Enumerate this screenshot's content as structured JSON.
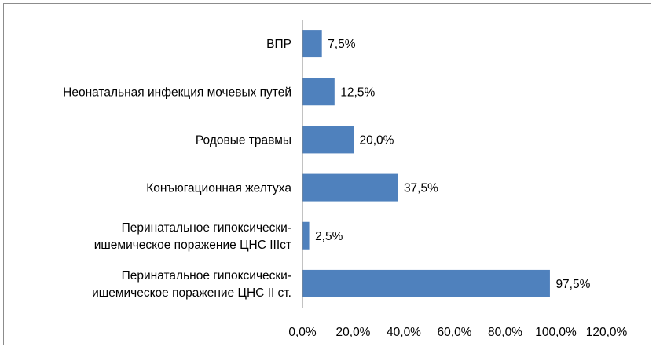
{
  "chart_data": {
    "type": "bar",
    "orientation": "horizontal",
    "categories": [
      [
        "ВПР"
      ],
      [
        "Неонатальная инфекция мочевых путей"
      ],
      [
        "Родовые травмы"
      ],
      [
        "Конъюгационная желтуха"
      ],
      [
        "Перинатальное гипоксически-",
        "ишемическое поражение ЦНС IIIст"
      ],
      [
        "Перинатальное гипоксически-",
        "ишемическое поражение ЦНС II ст."
      ]
    ],
    "values": [
      7.5,
      12.5,
      20.0,
      37.5,
      2.5,
      97.5
    ],
    "data_labels": [
      "7,5%",
      "12,5%",
      "20,0%",
      "37,5%",
      "2,5%",
      "97,5%"
    ],
    "xlim": [
      0,
      120
    ],
    "x_ticks": [
      0,
      20,
      40,
      60,
      80,
      100,
      120
    ],
    "x_tick_labels": [
      "0,0%",
      "20,0%",
      "40,0%",
      "60,0%",
      "80,0%",
      "100,0%",
      "120,0%"
    ],
    "bar_color": "#4f81bd",
    "grid": false,
    "legend": "none"
  }
}
